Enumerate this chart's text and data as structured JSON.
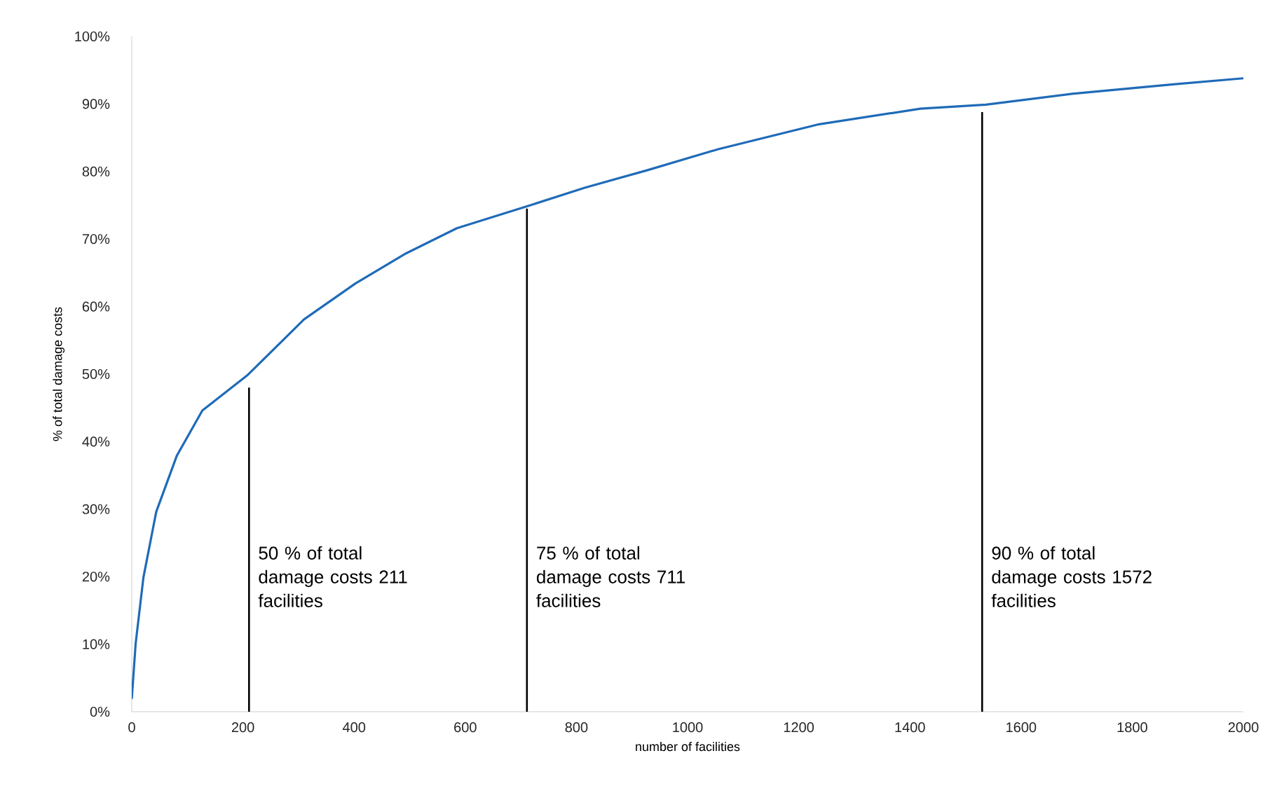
{
  "chart_data": {
    "type": "line",
    "xlabel": "number of facilities",
    "ylabel": "% of total damage costs",
    "xlim": [
      0,
      2000
    ],
    "xticks": [
      0,
      200,
      400,
      600,
      800,
      1000,
      1200,
      1400,
      1600,
      1800,
      2000
    ],
    "ylim": [
      0,
      100
    ],
    "yticks": [
      {
        "value": 0,
        "label": "0%"
      },
      {
        "value": 10,
        "label": "10%"
      },
      {
        "value": 20,
        "label": "20%"
      },
      {
        "value": 30,
        "label": "30%"
      },
      {
        "value": 40,
        "label": "40%"
      },
      {
        "value": 50,
        "label": "50%"
      },
      {
        "value": 60,
        "label": "60%"
      },
      {
        "value": 70,
        "label": "70%"
      },
      {
        "value": 80,
        "label": "80%"
      },
      {
        "value": 90,
        "label": "90%"
      },
      {
        "value": 100,
        "label": "100%"
      }
    ],
    "grid": false,
    "marker": "none",
    "series": [
      {
        "color": "#1f6bb8",
        "x": [
          0,
          7,
          21,
          44,
          81,
          127,
          209,
          310,
          402,
          494,
          585,
          717,
          815,
          928,
          1055,
          1237,
          1419,
          1537,
          1692,
          1874,
          2000
        ],
        "values": [
          1.9,
          10.1,
          19.9,
          29.6,
          37.9,
          44.6,
          49.9,
          58.1,
          63.4,
          67.9,
          71.6,
          75.0,
          77.6,
          80.2,
          83.3,
          87.0,
          89.3,
          89.9,
          91.5,
          92.9,
          93.8
        ]
      },
      {
        "color": "#000000",
        "x": [
          211,
          211
        ],
        "values": [
          0,
          48
        ]
      },
      {
        "color": "#000000",
        "x": [
          711,
          711
        ],
        "values": [
          0,
          74.5
        ]
      },
      {
        "color": "#000000",
        "x": [
          1530,
          1530
        ],
        "values": [
          0,
          88.8
        ]
      }
    ],
    "annotations": [
      {
        "text": "50 % of total damage costs 211 facilities",
        "x": 211,
        "y": 20
      },
      {
        "text": "75 % of total damage costs 711 facilities",
        "x": 711,
        "y": 20
      },
      {
        "text": "90 % of total damage costs 1572 facilities",
        "x": 1530,
        "y": 20
      }
    ]
  }
}
